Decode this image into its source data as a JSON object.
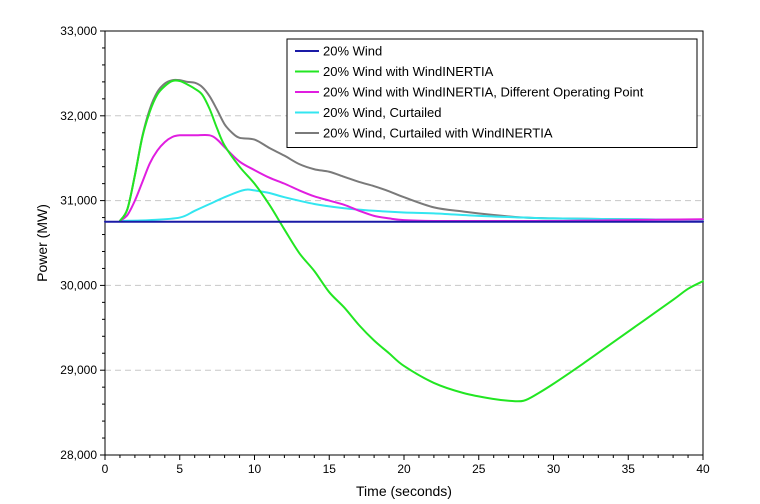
{
  "chart_data": {
    "type": "line",
    "title": "",
    "xlabel": "Time (seconds)",
    "ylabel": "Power (MW)",
    "xlim": [
      0,
      40
    ],
    "ylim": [
      28000,
      33000
    ],
    "x_ticks": [
      0,
      5,
      10,
      15,
      20,
      25,
      30,
      35,
      40
    ],
    "x_tick_labels": [
      "0",
      "5",
      "10",
      "15",
      "20",
      "25",
      "30",
      "35",
      "40"
    ],
    "y_ticks": [
      28000,
      29000,
      30000,
      31000,
      32000,
      33000
    ],
    "y_tick_labels": [
      "28,000",
      "29,000",
      "30,000",
      "31,000",
      "32,000",
      "33,000"
    ],
    "grid": "horizontal dashed at major y ticks",
    "legend_position": "top-right",
    "series": [
      {
        "name": "20% Wind",
        "color": "#1a1aa6",
        "x": [
          0,
          40
        ],
        "y": [
          30750,
          30750
        ]
      },
      {
        "name": "20% Wind with WindINERTIA",
        "color": "#22e622",
        "x": [
          1,
          1.5,
          2,
          2.5,
          3,
          3.5,
          4,
          4.5,
          5,
          5.5,
          6,
          6.5,
          7,
          7.5,
          8,
          9,
          10,
          11,
          12,
          13,
          14,
          15,
          16,
          17,
          18,
          19,
          20,
          22,
          24,
          26,
          27,
          28,
          29,
          30,
          32,
          34,
          36,
          38,
          39,
          40
        ],
        "y": [
          30760,
          30900,
          31300,
          31750,
          32050,
          32250,
          32350,
          32410,
          32410,
          32370,
          32320,
          32250,
          32080,
          31850,
          31650,
          31400,
          31200,
          30950,
          30660,
          30380,
          30170,
          29920,
          29740,
          29530,
          29350,
          29200,
          29050,
          28850,
          28730,
          28660,
          28640,
          28640,
          28730,
          28840,
          29080,
          29330,
          29580,
          29830,
          29960,
          30050
        ]
      },
      {
        "name": "20% Wind with WindINERTIA, Different Operating Point",
        "color": "#e01ee0",
        "x": [
          1,
          1.5,
          2,
          2.5,
          3,
          3.5,
          4,
          4.5,
          5,
          6,
          7,
          7.5,
          8,
          9,
          10,
          11,
          12,
          13,
          14,
          15,
          16,
          17,
          18,
          19,
          20,
          22,
          25,
          30,
          35,
          40
        ],
        "y": [
          30760,
          30830,
          31000,
          31220,
          31440,
          31590,
          31690,
          31750,
          31770,
          31770,
          31770,
          31720,
          31630,
          31460,
          31360,
          31270,
          31200,
          31120,
          31050,
          31000,
          30950,
          30880,
          30820,
          30790,
          30770,
          30760,
          30760,
          30760,
          30770,
          30780
        ]
      },
      {
        "name": "20% Wind, Curtailed",
        "color": "#33e6f0",
        "x": [
          1,
          3,
          5,
          6,
          7,
          8,
          9,
          9.5,
          10,
          11,
          12,
          14,
          16,
          18,
          20,
          22,
          25,
          28,
          30,
          35,
          40
        ],
        "y": [
          30760,
          30770,
          30800,
          30880,
          30960,
          31040,
          31110,
          31130,
          31120,
          31090,
          31040,
          30960,
          30910,
          30880,
          30860,
          30850,
          30820,
          30800,
          30790,
          30780,
          30775
        ]
      },
      {
        "name": "20% Wind, Curtailed with WindINERTIA",
        "color": "#7a7a7a",
        "x": [
          1,
          1.5,
          2,
          2.5,
          3,
          3.5,
          4,
          4.5,
          5,
          5.5,
          6,
          6.5,
          7,
          7.5,
          8,
          8.5,
          9,
          10,
          11,
          12,
          13,
          14,
          15,
          16,
          17,
          18,
          19,
          20,
          22,
          24,
          26,
          28,
          30,
          35,
          40
        ],
        "y": [
          30760,
          30900,
          31300,
          31760,
          32080,
          32280,
          32380,
          32420,
          32420,
          32400,
          32390,
          32340,
          32230,
          32070,
          31900,
          31800,
          31740,
          31720,
          31620,
          31530,
          31430,
          31370,
          31340,
          31280,
          31220,
          31170,
          31110,
          31040,
          30920,
          30870,
          30830,
          30800,
          30790,
          30780,
          30775
        ]
      }
    ]
  }
}
